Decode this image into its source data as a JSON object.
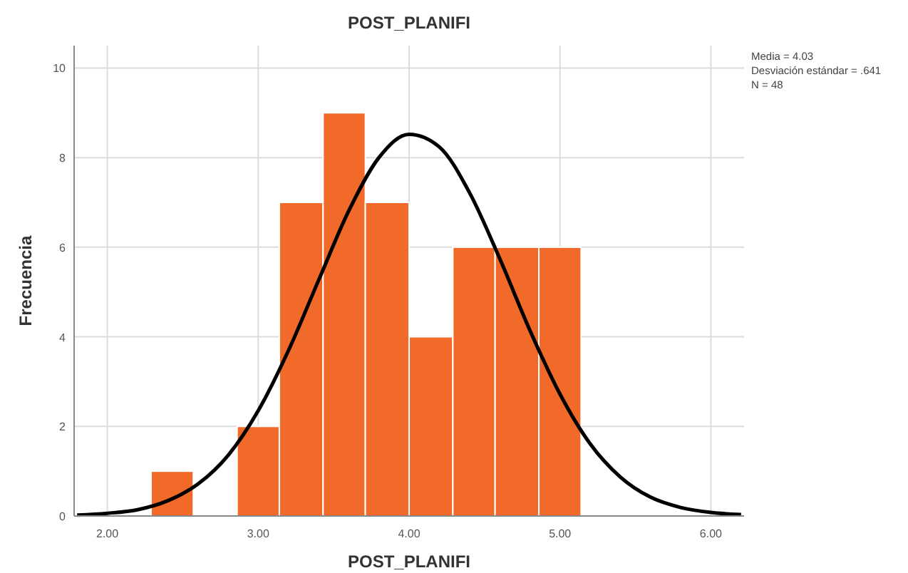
{
  "chart_data": {
    "type": "histogram",
    "title": "POST_PLANIFI",
    "xlabel": "POST_PLANIFI",
    "ylabel": "Frecuencia",
    "bins": [
      2.29,
      2.57,
      2.86,
      3.14,
      3.43,
      3.71,
      4.0,
      4.29,
      4.57,
      4.86,
      5.14
    ],
    "values": [
      1,
      0,
      2,
      7,
      9,
      7,
      4,
      6,
      6,
      6
    ],
    "color": "#f26a2a",
    "series": [
      {
        "type": "line",
        "color": "#000000",
        "x": [
          1.8,
          2.0,
          2.2,
          2.4,
          2.6,
          2.8,
          3.0,
          3.2,
          3.4,
          3.6,
          3.8,
          4.0,
          4.2,
          4.4,
          4.6,
          4.8,
          5.0,
          5.2,
          5.4,
          5.6,
          5.8,
          6.0,
          6.2
        ],
        "values": [
          0.02,
          0.06,
          0.14,
          0.34,
          0.71,
          1.35,
          2.35,
          3.69,
          5.26,
          6.81,
          8.0,
          8.52,
          8.24,
          7.22,
          5.75,
          4.15,
          2.72,
          1.61,
          0.87,
          0.42,
          0.19,
          0.08,
          0.03
        ]
      }
    ],
    "xlim": [
      1.78,
      6.22
    ],
    "ylim": [
      0,
      10.5
    ],
    "xticks": [
      {
        "value": 2,
        "label": "2.00"
      },
      {
        "value": 3,
        "label": "3.00"
      },
      {
        "value": 4,
        "label": "4.00"
      },
      {
        "value": 5,
        "label": "5.00"
      },
      {
        "value": 6,
        "label": "6.00"
      }
    ],
    "yticks": [
      0,
      2,
      4,
      6,
      8,
      10
    ],
    "grid": true,
    "annotations": [
      "Media = 4.03",
      "Desviación estándar = .641",
      "N = 48"
    ]
  }
}
